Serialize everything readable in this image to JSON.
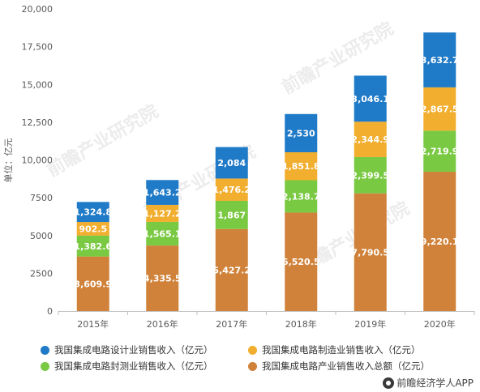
{
  "chart_data": {
    "type": "bar",
    "stacked": true,
    "categories": [
      "2015年",
      "2016年",
      "2017年",
      "2018年",
      "2019年",
      "2020年"
    ],
    "ylabel": "单位：亿元",
    "ylim": [
      0,
      20000
    ],
    "yticks": [
      "0",
      "2500",
      "5000",
      "7500",
      "10,000",
      "12,500",
      "15,000",
      "17,500",
      "20,000"
    ],
    "ytick_values": [
      0,
      2500,
      5000,
      7500,
      10000,
      12500,
      15000,
      17500,
      20000
    ],
    "grid": false,
    "legend_position": "bottom",
    "series": [
      {
        "name": "我国集成电路产业销售收入总额（亿元）",
        "color": "#d0823a",
        "values": [
          3609.9,
          4335.5,
          5427.2,
          6520.5,
          7790.5,
          9220.1
        ],
        "labels": [
          "3,609.9",
          "4,335.5",
          "5,427.2",
          "6,520.5",
          "7,790.5",
          "9,220.1"
        ]
      },
      {
        "name": "我国集成电路封测业销售收入（亿元）",
        "color": "#7ac943",
        "values": [
          1382.6,
          1565.1,
          1867,
          2138.7,
          2399.5,
          2719.9
        ],
        "labels": [
          "1,382.6",
          "1,565.1",
          "1,867",
          "2,138.7",
          "2,399.5",
          "2,719.9"
        ]
      },
      {
        "name": "我国集成电路制造业销售收入（亿元）",
        "color": "#f2ae2e",
        "values": [
          902.5,
          1127.2,
          1476.2,
          1851.8,
          2344.9,
          2867.5
        ],
        "labels": [
          "902.5",
          "1,127.2",
          "1,476.2",
          "1,851.8",
          "2,344.9",
          "2,867.5"
        ]
      },
      {
        "name": "我国集成电路设计业销售收入（亿元）",
        "color": "#1f7ac7",
        "values": [
          1324.8,
          1643.2,
          2084,
          2530,
          3046.1,
          3632.7
        ],
        "labels": [
          "1,324.8",
          "1,643.2",
          "2,084",
          "2,530",
          "3,046.1",
          "3,632.7"
        ]
      }
    ],
    "legend_order": [
      3,
      2,
      1,
      0
    ]
  },
  "footer": {
    "brand": "前瞻经济学人APP"
  },
  "watermark": {
    "text": "前瞻产业研究院"
  }
}
